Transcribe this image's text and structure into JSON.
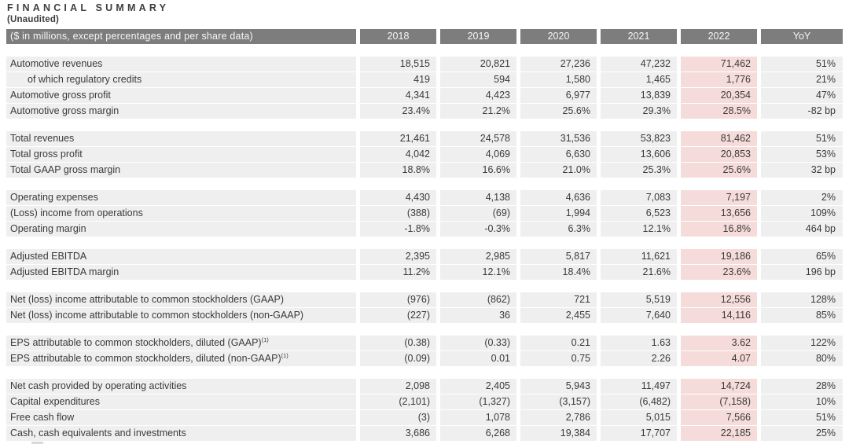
{
  "page": {
    "title": "FINANCIAL SUMMARY",
    "subtitle": "(Unaudited)"
  },
  "colors": {
    "header_bg": "#7d7d7d",
    "header_text": "#f7f7f7",
    "row_bg": "#efefef",
    "highlight_bg": "#f5dcda",
    "body_text": "#3a3a3a",
    "title_text": "#3d3d3d"
  },
  "table": {
    "unit_label": "($ in millions, except percentages and per share data)",
    "columns": [
      "2018",
      "2019",
      "2020",
      "2021",
      "2022",
      "YoY"
    ],
    "highlight_column": "2022",
    "highlight_column_index": 4,
    "sections": [
      {
        "rows": [
          {
            "label": "Automotive revenues",
            "values": [
              "18,515",
              "20,821",
              "27,236",
              "47,232",
              "71,462",
              "51%"
            ]
          },
          {
            "label": "of which regulatory credits",
            "indent": true,
            "values": [
              "419",
              "594",
              "1,580",
              "1,465",
              "1,776",
              "21%"
            ]
          },
          {
            "label": "Automotive gross profit",
            "values": [
              "4,341",
              "4,423",
              "6,977",
              "13,839",
              "20,354",
              "47%"
            ]
          },
          {
            "label": "Automotive gross margin",
            "values": [
              "23.4%",
              "21.2%",
              "25.6%",
              "29.3%",
              "28.5%",
              "-82 bp"
            ]
          }
        ]
      },
      {
        "rows": [
          {
            "label": "Total revenues",
            "values": [
              "21,461",
              "24,578",
              "31,536",
              "53,823",
              "81,462",
              "51%"
            ]
          },
          {
            "label": "Total gross profit",
            "values": [
              "4,042",
              "4,069",
              "6,630",
              "13,606",
              "20,853",
              "53%"
            ]
          },
          {
            "label": "Total GAAP gross margin",
            "values": [
              "18.8%",
              "16.6%",
              "21.0%",
              "25.3%",
              "25.6%",
              "32 bp"
            ]
          }
        ]
      },
      {
        "rows": [
          {
            "label": "Operating expenses",
            "values": [
              "4,430",
              "4,138",
              "4,636",
              "7,083",
              "7,197",
              "2%"
            ]
          },
          {
            "label": "(Loss) income from operations",
            "values": [
              "(388)",
              "(69)",
              "1,994",
              "6,523",
              "13,656",
              "109%"
            ]
          },
          {
            "label": "Operating margin",
            "values": [
              "-1.8%",
              "-0.3%",
              "6.3%",
              "12.1%",
              "16.8%",
              "464 bp"
            ]
          }
        ]
      },
      {
        "rows": [
          {
            "label": "Adjusted EBITDA",
            "values": [
              "2,395",
              "2,985",
              "5,817",
              "11,621",
              "19,186",
              "65%"
            ]
          },
          {
            "label": "Adjusted EBITDA margin",
            "values": [
              "11.2%",
              "12.1%",
              "18.4%",
              "21.6%",
              "23.6%",
              "196 bp"
            ]
          }
        ]
      },
      {
        "rows": [
          {
            "label": "Net (loss) income attributable to common stockholders (GAAP)",
            "values": [
              "(976)",
              "(862)",
              "721",
              "5,519",
              "12,556",
              "128%"
            ]
          },
          {
            "label": "Net (loss) income attributable to common stockholders (non-GAAP)",
            "values": [
              "(227)",
              "36",
              "2,455",
              "7,640",
              "14,116",
              "85%"
            ]
          }
        ]
      },
      {
        "rows": [
          {
            "label": "EPS attributable to common stockholders, diluted (GAAP)",
            "sup": "(1)",
            "values": [
              "(0.38)",
              "(0.33)",
              "0.21",
              "1.63",
              "3.62",
              "122%"
            ]
          },
          {
            "label": "EPS attributable to common stockholders, diluted (non-GAAP)",
            "sup": "(1)",
            "values": [
              "(0.09)",
              "0.01",
              "0.75",
              "2.26",
              "4.07",
              "80%"
            ]
          }
        ]
      },
      {
        "rows": [
          {
            "label": "Net cash provided by operating activities",
            "values": [
              "2,098",
              "2,405",
              "5,943",
              "11,497",
              "14,724",
              "28%"
            ]
          },
          {
            "label": "Capital expenditures",
            "values": [
              "(2,101)",
              "(1,327)",
              "(3,157)",
              "(6,482)",
              "(7,158)",
              "10%"
            ]
          },
          {
            "label": "Free cash flow",
            "values": [
              "(3)",
              "1,078",
              "2,786",
              "5,015",
              "7,566",
              "51%"
            ]
          },
          {
            "label": "Cash, cash equivalents and investments",
            "values": [
              "3,686",
              "6,268",
              "19,384",
              "17,707",
              "22,185",
              "25%"
            ]
          }
        ]
      }
    ]
  }
}
